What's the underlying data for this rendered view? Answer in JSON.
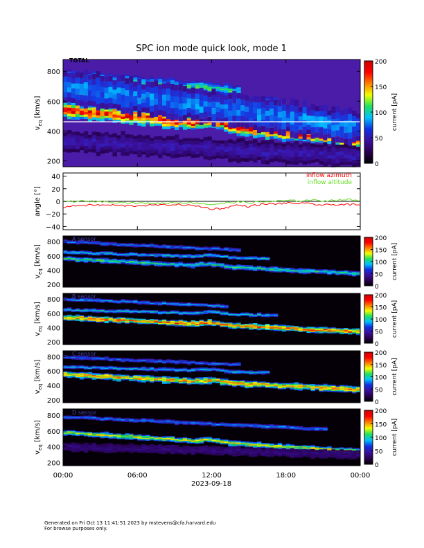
{
  "title": "SPC ion mode quick look, mode 1",
  "footer": {
    "line1": "Generated on Fri Oct 13 11:41:51 2023 by mstevens@cfa.harvard.edu",
    "line2": "For browse purposes only."
  },
  "time_axis": {
    "ticks": [
      "00:00",
      "06:00",
      "12:00",
      "18:00",
      "00:00"
    ],
    "date_label": "2023-09-18"
  },
  "colorbar": {
    "label": "current [pA]",
    "colors": [
      "#000000",
      "#2a0050",
      "#3a10a0",
      "#1030e0",
      "#00c0ff",
      "#20e060",
      "#f0ff00",
      "#ff8000",
      "#ff0000",
      "#d00000"
    ]
  },
  "chart_data": [
    {
      "type": "heatmap",
      "panel": "total",
      "label": "TOTAL",
      "ylabel": "v_eq [km/s]",
      "yticks": [
        "200",
        "400",
        "600",
        "800"
      ],
      "ylim": [
        160,
        880
      ],
      "xlim_hours": [
        0,
        24
      ],
      "colorbar_ticks": [
        "0",
        "50",
        "100",
        "150",
        "200"
      ],
      "zlim": [
        0,
        200
      ],
      "bands_kms": {
        "primary_start_end": [
          540,
          335
        ],
        "secondary_start_end": [
          650,
          560
        ],
        "tertiary_start_end": [
          770,
          600
        ],
        "cut_line_kms": 462
      }
    },
    {
      "type": "line",
      "panel": "angle",
      "ylabel": "angle [°]",
      "yticks": [
        "−40",
        "−20",
        "0",
        "20",
        "40"
      ],
      "ylim": [
        -45,
        45
      ],
      "legend": [
        "inflow azimuth",
        "inflow altitude"
      ],
      "series": [
        {
          "name": "inflow azimuth",
          "color": "#ff0000",
          "x_hours": [
            0,
            1,
            2,
            3,
            4,
            5,
            6,
            7,
            8,
            9,
            10,
            11,
            12,
            13,
            14,
            15,
            16,
            17,
            18,
            19,
            20,
            21,
            22,
            23,
            24
          ],
          "values": [
            -9,
            -7,
            -6,
            -6,
            -6,
            -7,
            -7,
            -6,
            -6,
            -5,
            -6,
            -8,
            -12,
            -11,
            -6,
            -8,
            -5,
            -4,
            -3,
            -3,
            -4,
            -6,
            -5,
            -5,
            -6
          ]
        },
        {
          "name": "inflow altitude",
          "color": "#66dd22",
          "x_hours": [
            0,
            1,
            2,
            3,
            4,
            5,
            6,
            7,
            8,
            9,
            10,
            11,
            12,
            13,
            14,
            15,
            16,
            17,
            18,
            19,
            20,
            21,
            22,
            23,
            24
          ],
          "values": [
            0,
            0,
            0,
            0,
            -1,
            -2,
            -3,
            -3,
            -3,
            -2,
            -2,
            -3,
            -5,
            -3,
            -1,
            -2,
            -1,
            0,
            1,
            1,
            2,
            1,
            2,
            3,
            1
          ]
        }
      ]
    },
    {
      "type": "heatmap",
      "panel": "A",
      "label": "A sensor",
      "ylabel": "v_eq [km/s]",
      "yticks": [
        "200",
        "400",
        "600",
        "800"
      ],
      "ylim": [
        160,
        880
      ],
      "colorbar_ticks": [
        "0",
        "50",
        "100",
        "150",
        "200"
      ],
      "zlim": [
        0,
        200
      ]
    },
    {
      "type": "heatmap",
      "panel": "B",
      "label": "B sensor",
      "ylabel": "v_eq [km/s]",
      "yticks": [
        "200",
        "400",
        "600",
        "800"
      ],
      "ylim": [
        160,
        880
      ],
      "colorbar_ticks": [
        "0",
        "50",
        "100",
        "150",
        "200"
      ],
      "zlim": [
        0,
        200
      ]
    },
    {
      "type": "heatmap",
      "panel": "C",
      "label": "C sensor",
      "ylabel": "v_eq [km/s]",
      "yticks": [
        "200",
        "400",
        "600",
        "800"
      ],
      "ylim": [
        160,
        880
      ],
      "colorbar_ticks": [
        "0",
        "50",
        "100",
        "150",
        "200"
      ],
      "zlim": [
        0,
        200
      ]
    },
    {
      "type": "heatmap",
      "panel": "D",
      "label": "D sensor",
      "ylabel": "v_eq [km/s]",
      "yticks": [
        "200",
        "400",
        "600",
        "800"
      ],
      "ylim": [
        160,
        880
      ],
      "colorbar_ticks": [
        "0",
        "50",
        "100",
        "150",
        "200"
      ],
      "zlim": [
        0,
        200
      ]
    }
  ]
}
